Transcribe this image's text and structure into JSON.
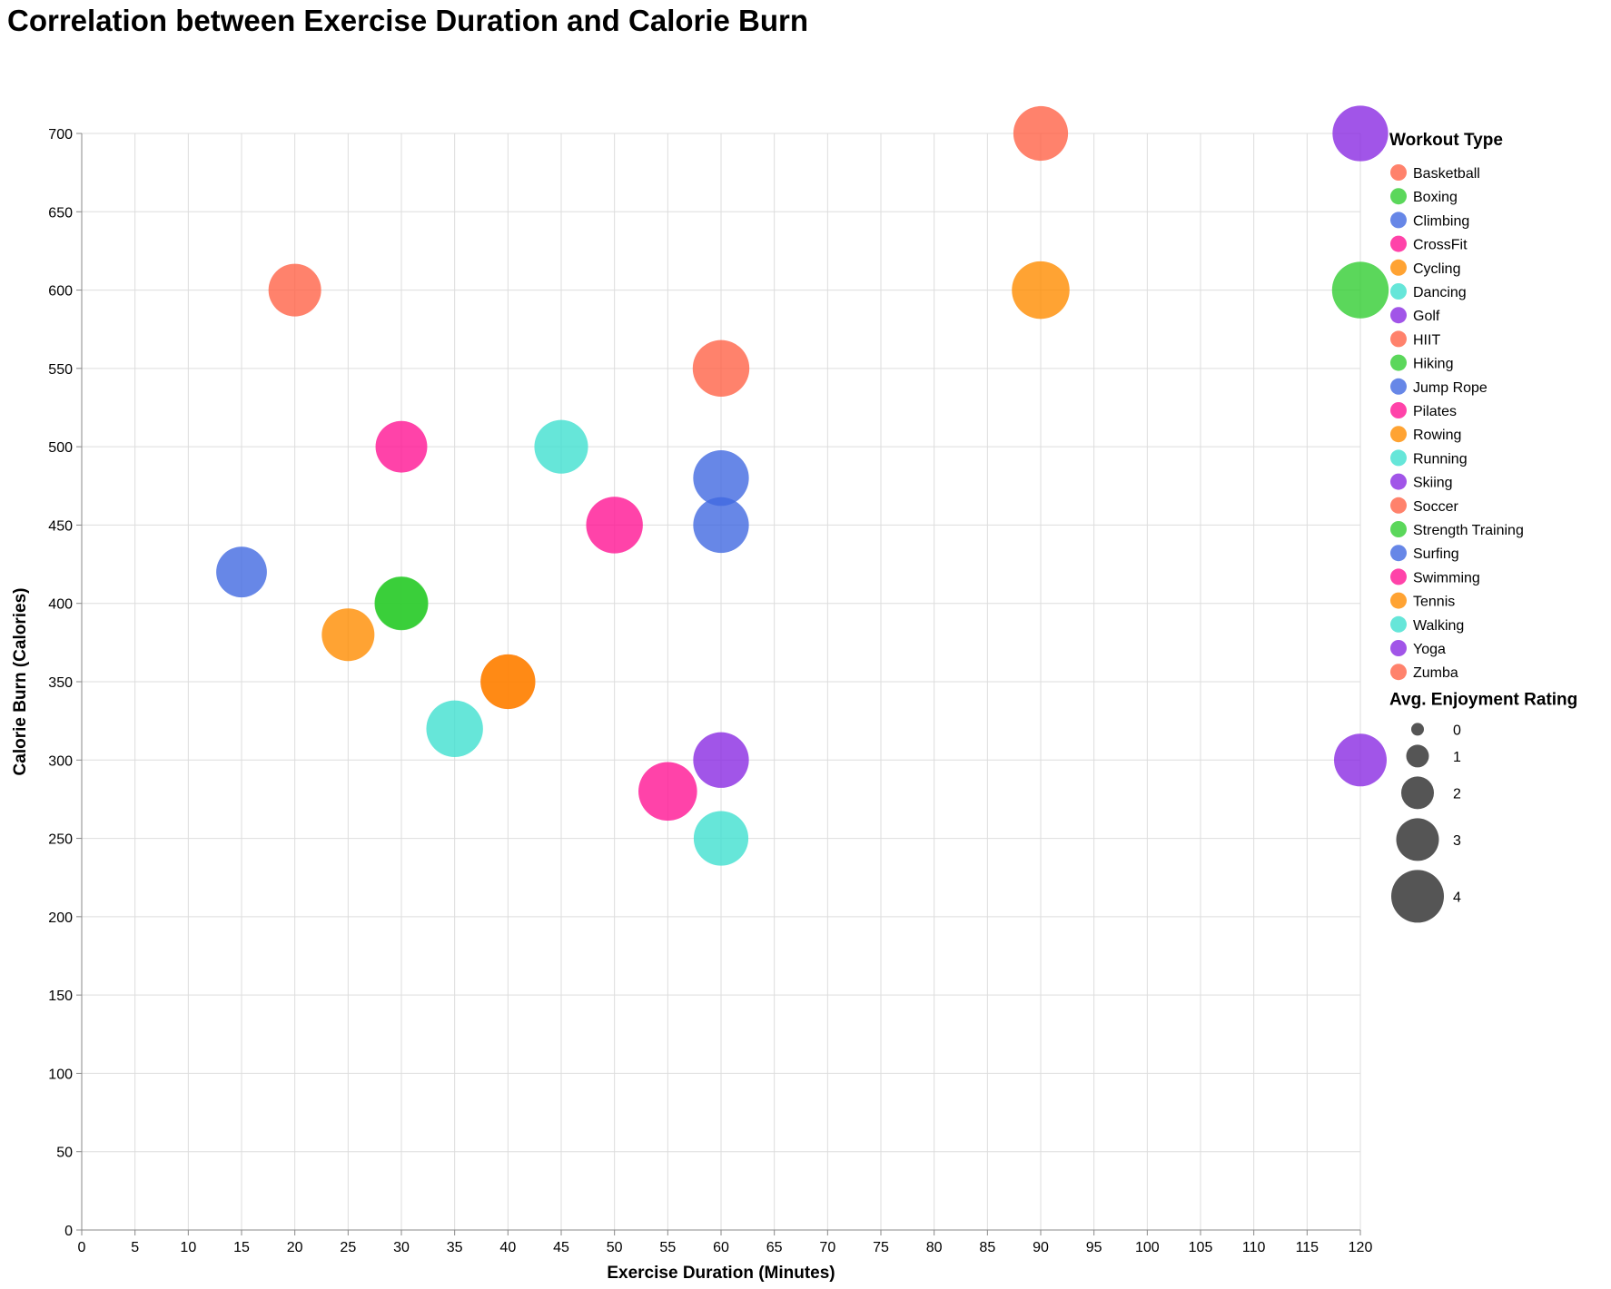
{
  "chart_data": {
    "type": "scatter",
    "title": "Correlation between Exercise Duration and Calorie Burn",
    "xlabel": "Exercise Duration (Minutes)",
    "ylabel": "Calorie Burn (Calories)",
    "xlim": [
      0,
      120
    ],
    "ylim": [
      0,
      700
    ],
    "x_ticks": [
      0,
      5,
      10,
      15,
      20,
      25,
      30,
      35,
      40,
      45,
      50,
      55,
      60,
      65,
      70,
      75,
      80,
      85,
      90,
      95,
      100,
      105,
      110,
      115,
      120
    ],
    "y_ticks": [
      0,
      50,
      100,
      150,
      200,
      250,
      300,
      350,
      400,
      450,
      500,
      550,
      600,
      650,
      700
    ],
    "grid": true,
    "legend_position": "right",
    "color_legend_title": "Workout Type",
    "size_legend_title": "Avg. Enjoyment Rating",
    "size_legend_values": [
      0,
      1,
      2,
      3,
      4
    ],
    "categories": [
      {
        "name": "Basketball",
        "color": "#FF6347"
      },
      {
        "name": "Boxing",
        "color": "#32CD32"
      },
      {
        "name": "Climbing",
        "color": "#4169E1"
      },
      {
        "name": "CrossFit",
        "color": "#FF1493"
      },
      {
        "name": "Cycling",
        "color": "#FF8C00"
      },
      {
        "name": "Dancing",
        "color": "#40E0D0"
      },
      {
        "name": "Golf",
        "color": "#8A2BE2"
      },
      {
        "name": "HIIT",
        "color": "#FF6347"
      },
      {
        "name": "Hiking",
        "color": "#32CD32"
      },
      {
        "name": "Jump Rope",
        "color": "#4169E1"
      },
      {
        "name": "Pilates",
        "color": "#FF1493"
      },
      {
        "name": "Rowing",
        "color": "#FF8C00"
      },
      {
        "name": "Running",
        "color": "#40E0D0"
      },
      {
        "name": "Skiing",
        "color": "#8A2BE2"
      },
      {
        "name": "Soccer",
        "color": "#FF6347"
      },
      {
        "name": "Strength Training",
        "color": "#32CD32"
      },
      {
        "name": "Surfing",
        "color": "#4169E1"
      },
      {
        "name": "Swimming",
        "color": "#FF1493"
      },
      {
        "name": "Tennis",
        "color": "#FF8C00"
      },
      {
        "name": "Walking",
        "color": "#40E0D0"
      },
      {
        "name": "Yoga",
        "color": "#8A2BE2"
      },
      {
        "name": "Zumba",
        "color": "#FF6347"
      }
    ],
    "points": [
      {
        "workout": "Basketball",
        "x": 90,
        "y": 700,
        "rating": 4.2
      },
      {
        "workout": "Skiing",
        "x": 120,
        "y": 700,
        "rating": 4.3
      },
      {
        "workout": "HIIT",
        "x": 20,
        "y": 600,
        "rating": 4.0
      },
      {
        "workout": "Cycling",
        "x": 90,
        "y": 600,
        "rating": 4.5
      },
      {
        "workout": "Hiking",
        "x": 120,
        "y": 600,
        "rating": 4.4
      },
      {
        "workout": "Soccer",
        "x": 60,
        "y": 550,
        "rating": 4.4
      },
      {
        "workout": "CrossFit",
        "x": 30,
        "y": 500,
        "rating": 3.9
      },
      {
        "workout": "Running",
        "x": 45,
        "y": 500,
        "rating": 4.1
      },
      {
        "workout": "Surfing",
        "x": 60,
        "y": 480,
        "rating": 4.3
      },
      {
        "workout": "Swimming",
        "x": 50,
        "y": 450,
        "rating": 4.4
      },
      {
        "workout": "Climbing",
        "x": 60,
        "y": 450,
        "rating": 4.3
      },
      {
        "workout": "Jump Rope",
        "x": 15,
        "y": 420,
        "rating": 3.8
      },
      {
        "workout": "Strength Training",
        "x": 30,
        "y": 400,
        "rating": 4.0
      },
      {
        "workout": "Boxing",
        "x": 30,
        "y": 400,
        "rating": 4.1
      },
      {
        "workout": "Rowing",
        "x": 25,
        "y": 380,
        "rating": 4.0
      },
      {
        "workout": "Zumba",
        "x": 40,
        "y": 350,
        "rating": 4.2
      },
      {
        "workout": "Tennis",
        "x": 40,
        "y": 350,
        "rating": 4.2
      },
      {
        "workout": "Dancing",
        "x": 35,
        "y": 320,
        "rating": 4.4
      },
      {
        "workout": "Golf",
        "x": 120,
        "y": 300,
        "rating": 4.0
      },
      {
        "workout": "Yoga",
        "x": 60,
        "y": 300,
        "rating": 4.3
      },
      {
        "workout": "Pilates",
        "x": 55,
        "y": 280,
        "rating": 4.6
      },
      {
        "workout": "Walking",
        "x": 60,
        "y": 250,
        "rating": 4.2
      }
    ]
  }
}
